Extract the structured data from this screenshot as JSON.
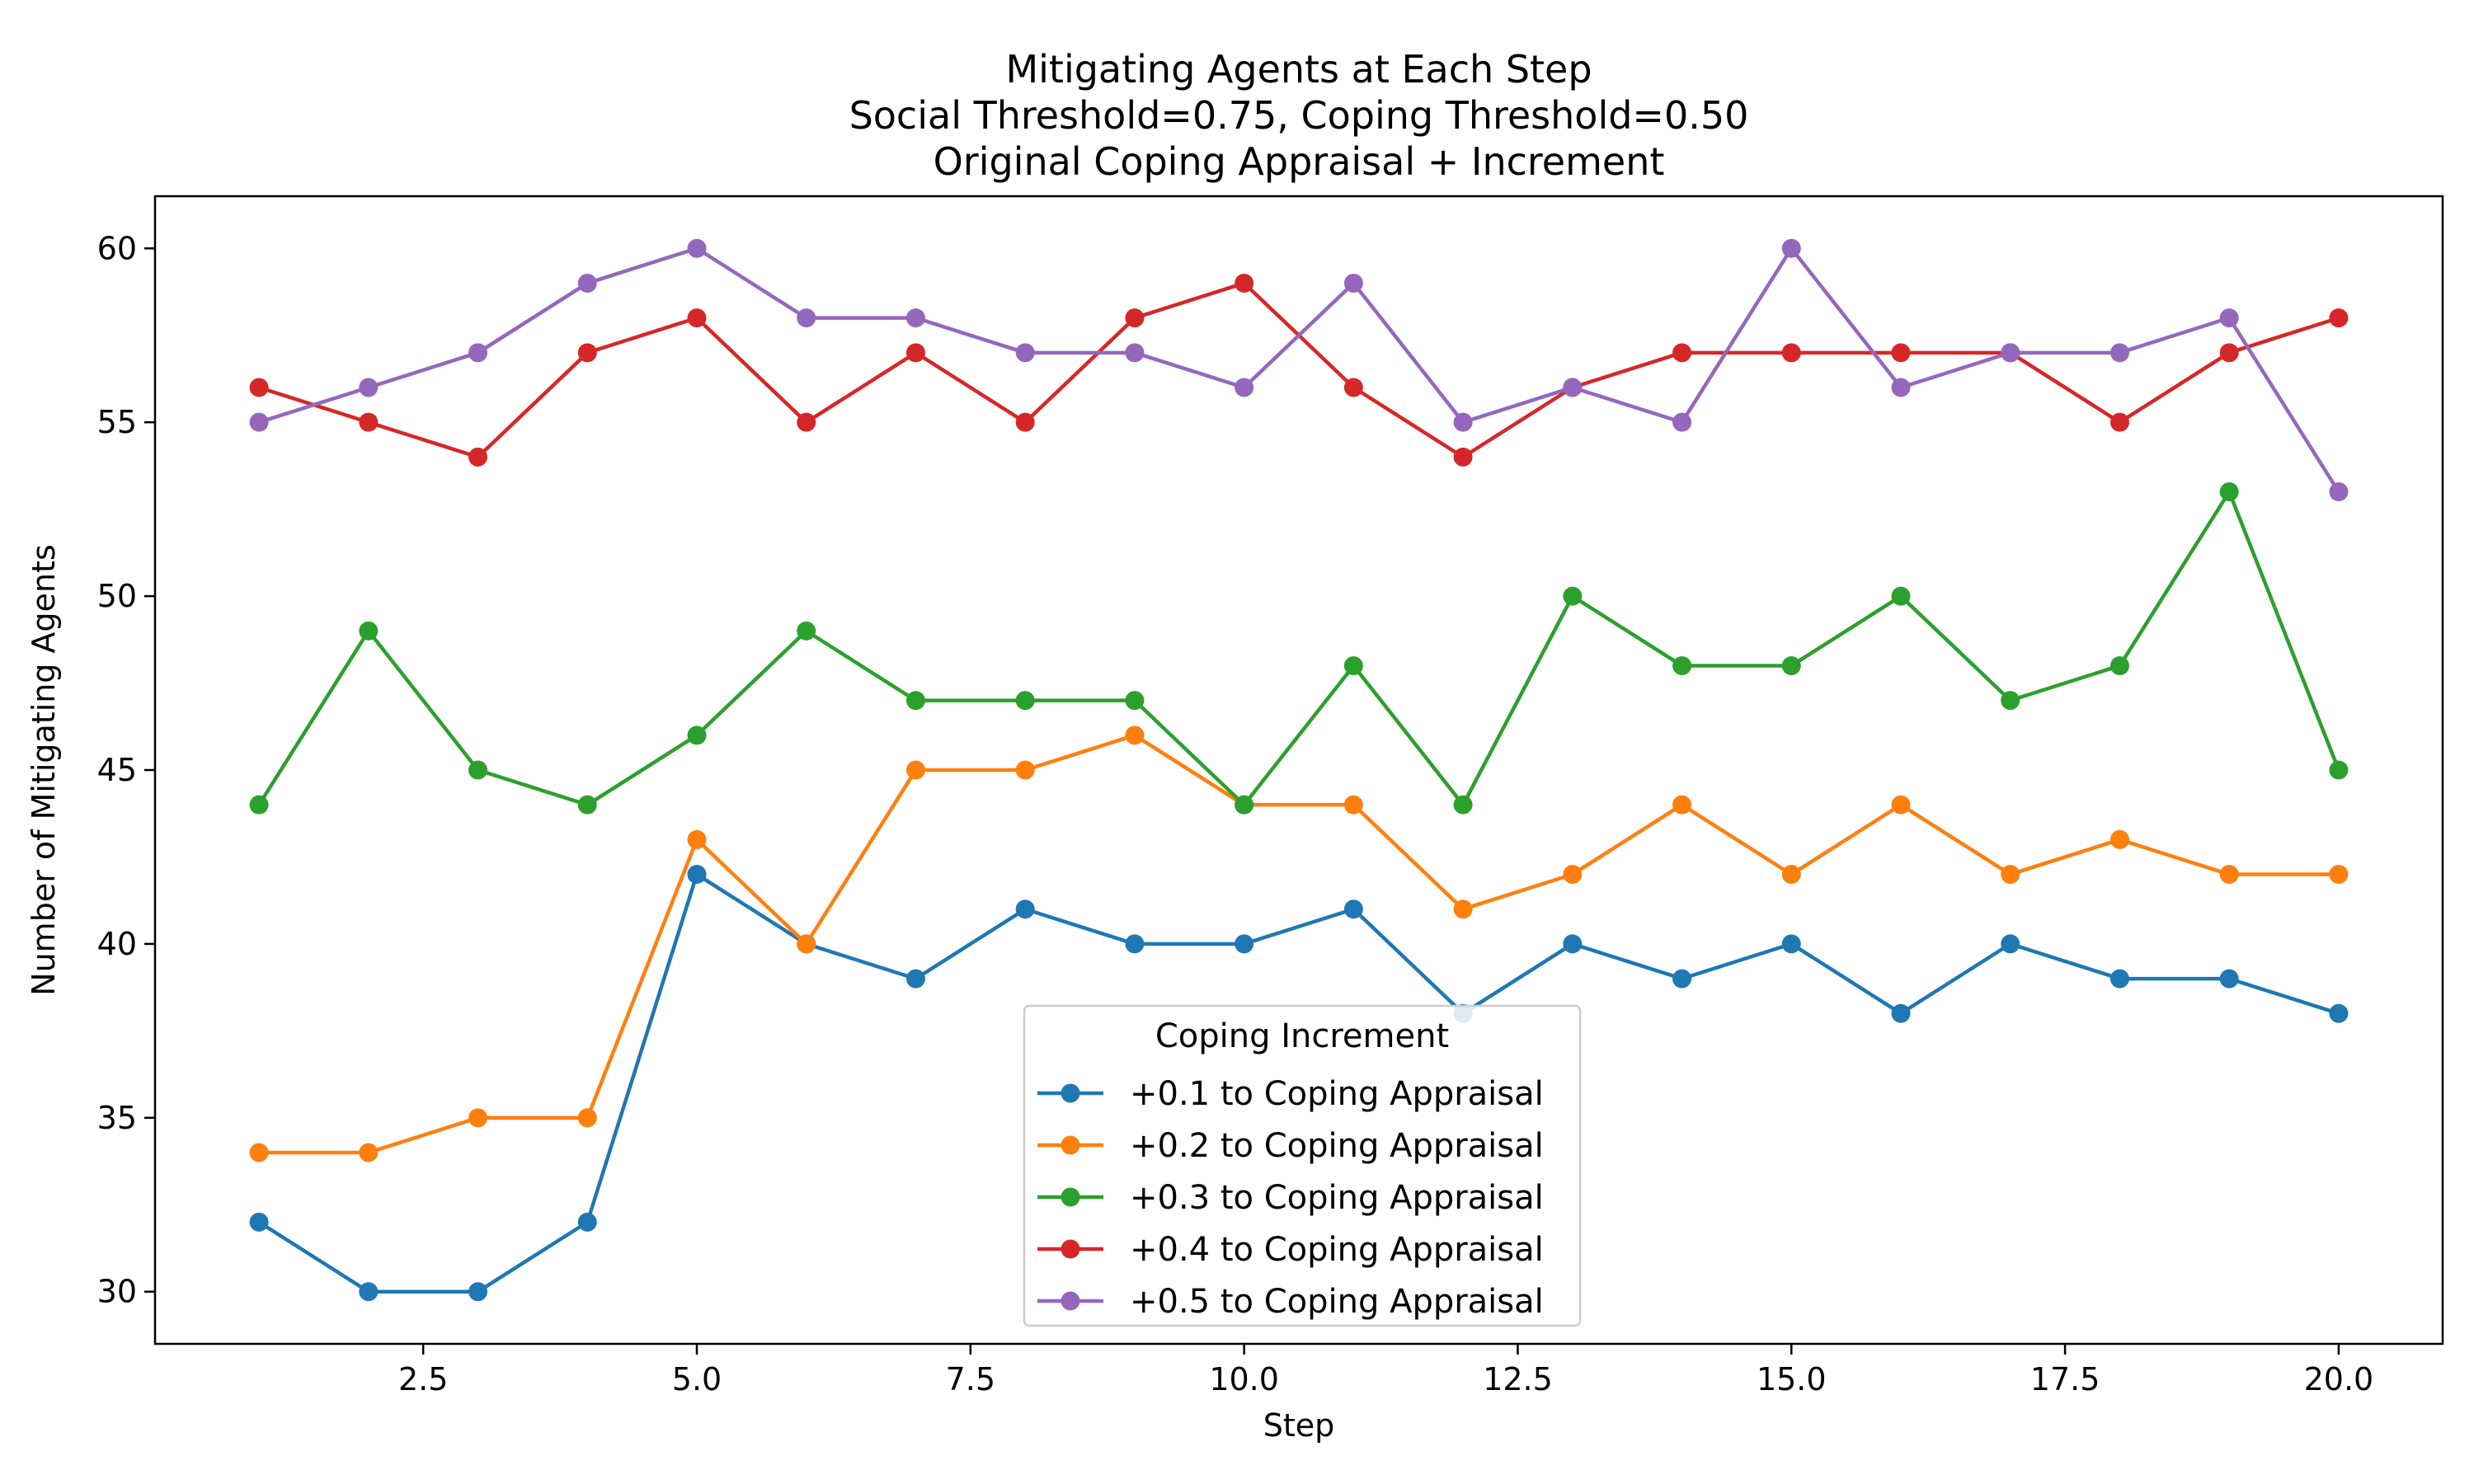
{
  "chart_data": {
    "type": "line",
    "title": [
      "Mitigating Agents at Each Step",
      "Social Threshold=0.75, Coping Threshold=0.50",
      "Original Coping Appraisal + Increment"
    ],
    "xlabel": "Step",
    "ylabel": "Number of Mitigating Agents",
    "xlim": [
      0.05,
      20.95
    ],
    "ylim": [
      28.5,
      61.5
    ],
    "xticks": [
      2.5,
      5.0,
      7.5,
      10.0,
      12.5,
      15.0,
      17.5,
      20.0
    ],
    "xtick_labels": [
      "2.5",
      "5.0",
      "7.5",
      "10.0",
      "12.5",
      "15.0",
      "17.5",
      "20.0"
    ],
    "yticks": [
      30,
      35,
      40,
      45,
      50,
      55,
      60
    ],
    "ytick_labels": [
      "30",
      "35",
      "40",
      "45",
      "50",
      "55",
      "60"
    ],
    "grid": false,
    "legend": {
      "title": "Coping Increment",
      "placement": "lower-center"
    },
    "x": [
      1,
      2,
      3,
      4,
      5,
      6,
      7,
      8,
      9,
      10,
      11,
      12,
      13,
      14,
      15,
      16,
      17,
      18,
      19,
      20
    ],
    "series": [
      {
        "name": "+0.1 to Coping Appraisal",
        "color": "#1f77b4",
        "values": [
          32,
          30,
          30,
          32,
          42,
          40,
          39,
          41,
          40,
          40,
          41,
          38,
          40,
          39,
          40,
          38,
          40,
          39,
          39,
          38
        ]
      },
      {
        "name": "+0.2 to Coping Appraisal",
        "color": "#ff7f0e",
        "values": [
          34,
          34,
          35,
          35,
          43,
          40,
          45,
          45,
          46,
          44,
          44,
          41,
          42,
          44,
          42,
          44,
          42,
          43,
          42,
          42
        ]
      },
      {
        "name": "+0.3 to Coping Appraisal",
        "color": "#2ca02c",
        "values": [
          44,
          49,
          45,
          44,
          46,
          49,
          47,
          47,
          47,
          44,
          48,
          44,
          50,
          48,
          48,
          50,
          47,
          48,
          53,
          45
        ]
      },
      {
        "name": "+0.4 to Coping Appraisal",
        "color": "#d62728",
        "values": [
          56,
          55,
          54,
          57,
          58,
          55,
          57,
          55,
          58,
          59,
          56,
          54,
          56,
          57,
          57,
          57,
          57,
          55,
          57,
          58
        ]
      },
      {
        "name": "+0.5 to Coping Appraisal",
        "color": "#9467bd",
        "values": [
          55,
          56,
          57,
          59,
          60,
          58,
          58,
          57,
          57,
          56,
          59,
          55,
          56,
          55,
          60,
          56,
          57,
          57,
          58,
          53
        ]
      }
    ]
  }
}
